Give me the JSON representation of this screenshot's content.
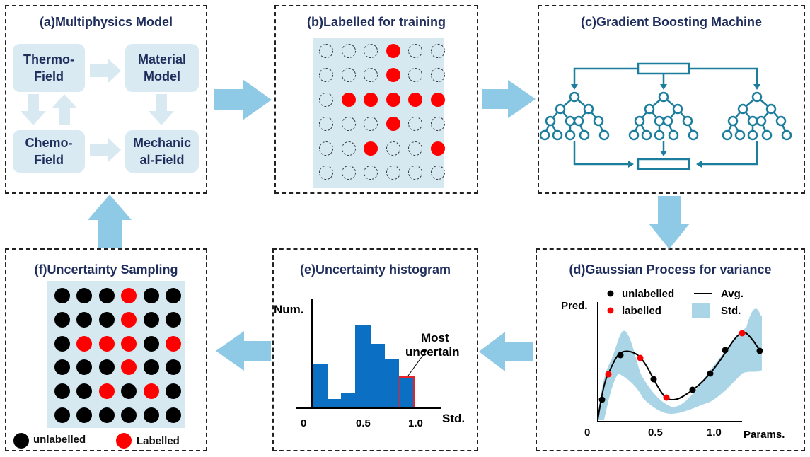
{
  "panels": {
    "a": {
      "title": "(a)Multiphysics Model",
      "boxes": {
        "thermo": "Thermo-\nField",
        "material": "Material\nModel",
        "chemo": "Chemo-\nField",
        "mechanical": "Mechanic\nal-Field"
      }
    },
    "b": {
      "title": "(b)Labelled for training",
      "grid": [
        "eeeree",
        "eeeree",
        "errrrr",
        "eeeree",
        "eereer",
        "eeeeee"
      ]
    },
    "c": {
      "title": "(c)Gradient Boosting Machine"
    },
    "d": {
      "title": "(d)Gaussian Process for variance",
      "legend": {
        "unlabelled": "unlabelled",
        "labelled": "labelled",
        "avg": "Avg.",
        "std": "Std."
      },
      "ylabel": "Pred.",
      "xlabel": "Params.",
      "ticks": [
        "0",
        "0.5",
        "1.0"
      ]
    },
    "e": {
      "title": "(e)Uncertainty histogram",
      "ylabel": "Num.",
      "xlabel": "Std.",
      "annotation": "Most\nuncertain",
      "ticks": [
        "0",
        "0.5",
        "1.0"
      ]
    },
    "f": {
      "title": "(f)Uncertainty Sampling",
      "grid": [
        "kkkrkk",
        "kkkrkk",
        "krrrkr",
        "kkkrkk",
        "kkrkrk",
        "kkkkkk"
      ],
      "legend": {
        "unlabelled": "unlabelled",
        "labelled": "Labelled"
      }
    }
  },
  "colors": {
    "accent": "#1f2d5c",
    "arrow": "#8ec9e6",
    "tree": "#1c7e9c",
    "bar": "#0b6fc4",
    "highlight": "#e3242b",
    "point_red": "#ff0000",
    "band": "#a9d5e6"
  }
}
